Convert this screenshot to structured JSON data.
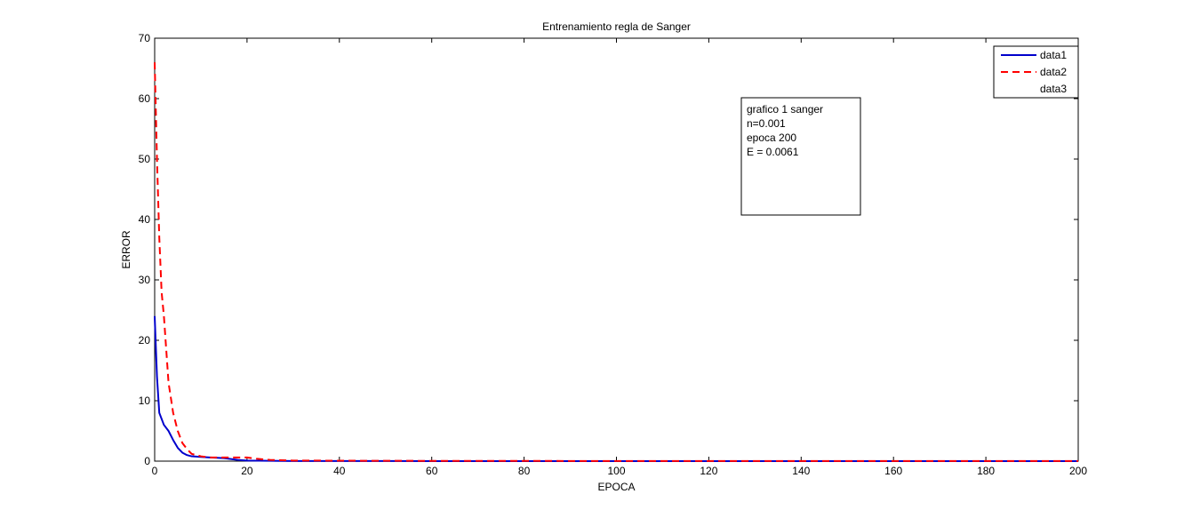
{
  "chart_data": {
    "type": "line",
    "title": "Entrenamiento regla de Sanger",
    "xlabel": "EPOCA",
    "ylabel": "ERROR",
    "xlim": [
      0,
      200
    ],
    "ylim": [
      0,
      70
    ],
    "xticks": [
      0,
      20,
      40,
      60,
      80,
      100,
      120,
      140,
      160,
      180,
      200
    ],
    "yticks": [
      0,
      10,
      20,
      30,
      40,
      50,
      60,
      70
    ],
    "grid": false,
    "legend_position": "top-right",
    "series": [
      {
        "name": "data1",
        "color": "#0000cc",
        "dash": "solid",
        "x": [
          0,
          0.5,
          1,
          2,
          3,
          4,
          5,
          6,
          7,
          8,
          10,
          12,
          15,
          18,
          20,
          25,
          30,
          50,
          100,
          150,
          200
        ],
        "y": [
          24,
          14,
          8,
          6,
          5,
          3.5,
          2.2,
          1.4,
          1.0,
          0.8,
          0.7,
          0.6,
          0.5,
          0.2,
          0.1,
          0.05,
          0.02,
          0.01,
          0.006,
          0.006,
          0.0061
        ]
      },
      {
        "name": "data2",
        "color": "#ff0000",
        "dash": "dashed",
        "x": [
          0,
          0.5,
          1,
          1.5,
          2,
          3,
          4,
          5,
          6,
          7,
          8,
          10,
          12,
          15,
          18,
          20,
          22,
          25,
          30,
          50,
          100,
          150,
          200
        ],
        "y": [
          66,
          50,
          37,
          28,
          24,
          13,
          8,
          5,
          3,
          2,
          1.2,
          0.8,
          0.6,
          0.6,
          0.6,
          0.6,
          0.4,
          0.2,
          0.1,
          0.05,
          0.02,
          0.01,
          0.01
        ]
      },
      {
        "name": "data3",
        "color": "#ffffff",
        "dash": "solid",
        "x": [],
        "y": []
      }
    ],
    "annotation": {
      "lines": [
        "grafico 1 sanger",
        "n=0.001",
        "epoca 200",
        "E = 0.0061"
      ]
    }
  }
}
